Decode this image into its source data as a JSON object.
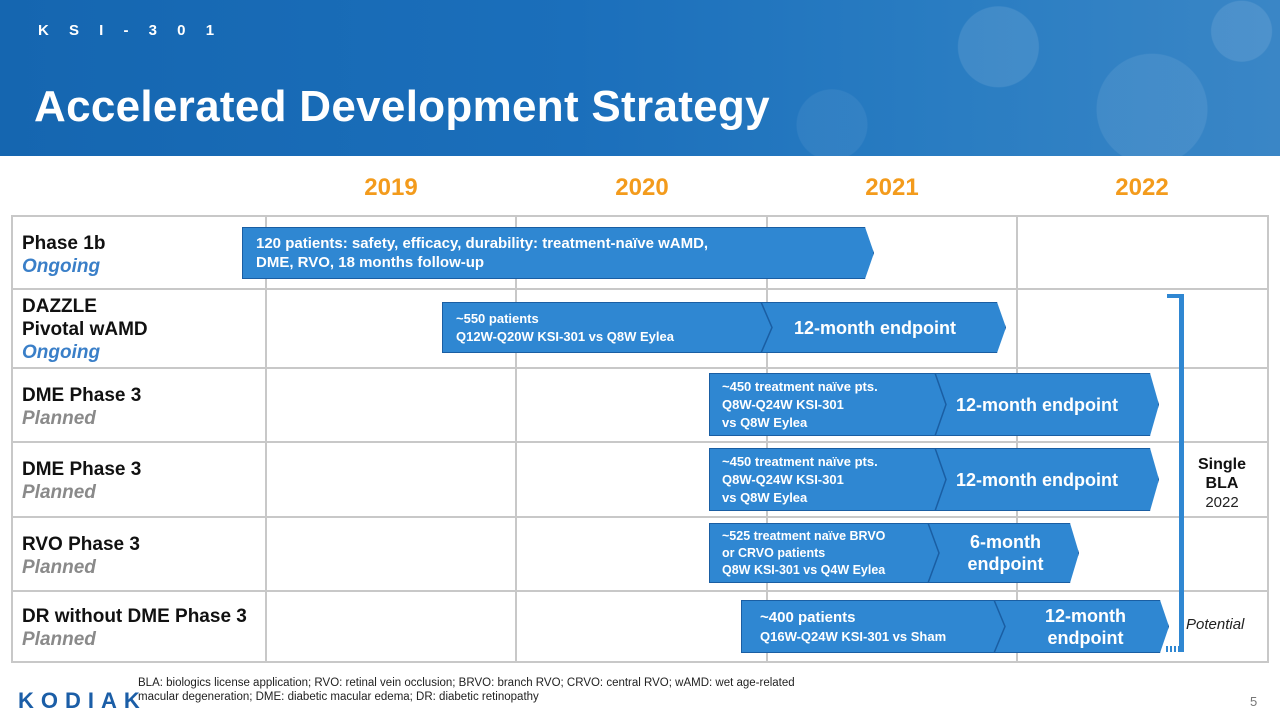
{
  "header": {
    "eyebrow": "K S I - 3 0 1",
    "title": "Accelerated Development Strategy"
  },
  "years": [
    "2019",
    "2020",
    "2021",
    "2022"
  ],
  "rows": [
    {
      "name": "Phase 1b",
      "name2": "",
      "status": "Ongoing",
      "status_type": "ongoing"
    },
    {
      "name": "DAZZLE",
      "name2": "Pivotal wAMD",
      "status": "Ongoing",
      "status_type": "ongoing"
    },
    {
      "name": "DME Phase 3",
      "name2": "",
      "status": "Planned",
      "status_type": "planned"
    },
    {
      "name": "DME Phase 3",
      "name2": "",
      "status": "Planned",
      "status_type": "planned"
    },
    {
      "name": "RVO Phase 3",
      "name2": "",
      "status": "Planned",
      "status_type": "planned"
    },
    {
      "name": "DR without DME Phase 3",
      "name2": "",
      "status": "Planned",
      "status_type": "planned"
    }
  ],
  "bars": {
    "phase1b": {
      "line1": "120 patients: safety, efficacy, durability: treatment-naïve wAMD,",
      "line2": "DME, RVO, 18 months follow-up"
    },
    "dazzle": {
      "line1": "~550 patients",
      "line2": "Q12W-Q20W KSI-301 vs Q8W Eylea",
      "endpoint": "12-month endpoint"
    },
    "dme1": {
      "line1": "~450 treatment naïve pts.",
      "line2": "Q8W-Q24W KSI-301",
      "line3": "vs Q8W Eylea",
      "endpoint": "12-month endpoint"
    },
    "dme2": {
      "line1": "~450 treatment naïve pts.",
      "line2": "Q8W-Q24W KSI-301",
      "line3": "vs Q8W Eylea",
      "endpoint": "12-month endpoint"
    },
    "rvo": {
      "line1": "~525 treatment naïve BRVO",
      "line2": "or CRVO patients",
      "line3": "Q8W KSI-301 vs Q4W Eylea",
      "endpoint1": "6-month",
      "endpoint2": "endpoint"
    },
    "dr": {
      "line1": "~400 patients",
      "line2": "Q16W-Q24W KSI-301 vs Sham",
      "endpoint1": "12-month",
      "endpoint2": "endpoint"
    }
  },
  "bla": {
    "single": "Single",
    "bla": "BLA",
    "year": "2022",
    "potential": "Potential"
  },
  "footer": {
    "logo": "KODIAK",
    "footnote": "BLA: biologics license application; RVO: retinal vein occlusion; BRVO: branch RVO; CRVO: central RVO; wAMD: wet age-related macular degeneration; DME: diabetic macular edema; DR: diabetic retinopathy",
    "page": "5"
  },
  "colors": {
    "brand_blue": "#1b6fbb",
    "bar_blue": "#2f87d2",
    "year_orange": "#f39b1c",
    "ongoing_blue": "#3a7fc8",
    "planned_gray": "#8a8a8a"
  }
}
